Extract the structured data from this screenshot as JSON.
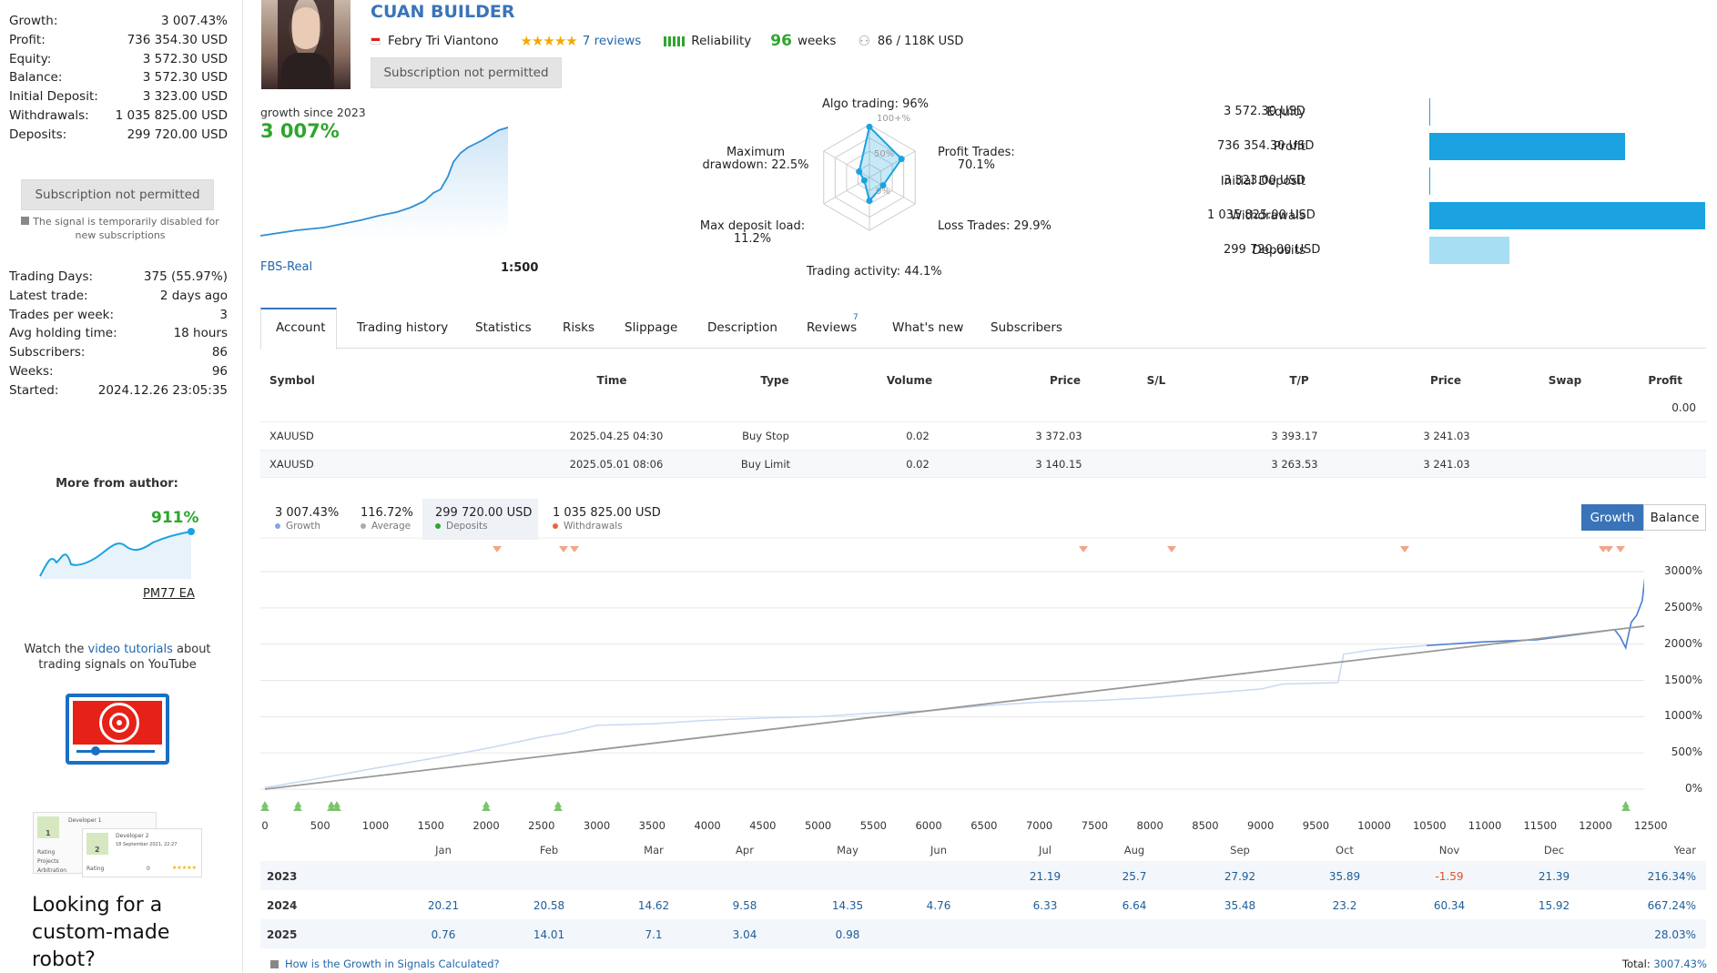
{
  "sidebar": {
    "stats": [
      {
        "label": "Growth:",
        "value": "3 007.43%"
      },
      {
        "label": "Profit:",
        "value": "736 354.30 USD"
      },
      {
        "label": "Equity:",
        "value": "3 572.30 USD"
      },
      {
        "label": "Balance:",
        "value": "3 572.30 USD"
      },
      {
        "label": "Initial Deposit:",
        "value": "3 323.00 USD"
      },
      {
        "label": "Withdrawals:",
        "value": "1 035 825.00 USD"
      },
      {
        "label": "Deposits:",
        "value": "299 720.00 USD"
      }
    ],
    "subscribe_label": "Subscription not permitted",
    "disabled_note": "The signal is temporarily disabled for new subscriptions",
    "stats2": [
      {
        "label": "Trading Days:",
        "value": "375 (55.97%)"
      },
      {
        "label": "Latest trade:",
        "value": "2 days ago"
      },
      {
        "label": "Trades per week:",
        "value": "3"
      },
      {
        "label": "Avg holding time:",
        "value": "18 hours"
      },
      {
        "label": "Subscribers:",
        "value": "86"
      },
      {
        "label": "Weeks:",
        "value": "96"
      },
      {
        "label": "Started:",
        "value": "2024.12.26 23:05:35"
      }
    ],
    "more_from_author": "More from author:",
    "author_growth": "911%",
    "author_ea": "PM77 EA",
    "watch_pre": "Watch the ",
    "watch_link": "video tutorials",
    "watch_post": " about",
    "watch_line2": "trading signals on YouTube",
    "dev1": "Developer 1",
    "dev2": "Developer 2",
    "dev2_date": "18 September 2021, 22:27",
    "dev_rating": "Rating",
    "dev_projects": "Projects",
    "dev_arbitration": "Arbitration",
    "dev_num1": "1",
    "dev_num2": "2",
    "dev_zero": "0",
    "custom_robot": "Looking for a custom-made robot?"
  },
  "header": {
    "title": "CUAN BUILDER",
    "author": "Febry Tri Viantono",
    "reviews": "7 reviews",
    "reliability": "Reliability",
    "weeks_num": "96",
    "weeks_label": "weeks",
    "subscribers": "86  /  118K USD",
    "subscribe_label": "Subscription not permitted"
  },
  "growth_mini": {
    "label": "growth since 2023",
    "value": "3 007%",
    "broker": "FBS-Real",
    "leverage": "1:500"
  },
  "radar": {
    "algo": "Algo trading: 96%",
    "profit_trades_1": "Profit Trades:",
    "profit_trades_2": "70.1%",
    "loss_trades": "Loss Trades: 29.9%",
    "activity": "Trading activity: 44.1%",
    "maxload_1": "Max deposit load:",
    "maxload_2": "11.2%",
    "dd_1": "Maximum",
    "dd_2": "drawdown: 22.5%",
    "ring100": "100+%",
    "ring50": "50%",
    "ring0": "0%",
    "values": [
      96,
      70.1,
      29.9,
      44.1,
      11.2,
      22.5
    ]
  },
  "bars": [
    {
      "label": "Equity",
      "value": "3 572.30 USD",
      "amount": 3572.3
    },
    {
      "label": "Profit",
      "value": "736 354.30 USD",
      "amount": 736354.3
    },
    {
      "label": "Initial Deposit",
      "value": "3 323.00 USD",
      "amount": 3323.0
    },
    {
      "label": "Withdrawals",
      "value": "1 035 825.00 USD",
      "amount": 1035825.0
    },
    {
      "label": "Deposits",
      "value": "299 720.00 USD",
      "amount": 299720.0
    }
  ],
  "tabs": [
    "Account",
    "Trading history",
    "Statistics",
    "Risks",
    "Slippage",
    "Description",
    "Reviews",
    "What's new",
    "Subscribers"
  ],
  "tabs_reviews_count": "7",
  "orders": {
    "headers": [
      "Symbol",
      "Time",
      "Type",
      "Volume",
      "Price",
      "S/L",
      "T/P",
      "Price",
      "Swap",
      "Profit"
    ],
    "total_profit": "0.00",
    "rows": [
      {
        "symbol": "XAUUSD",
        "time": "2025.04.25 04:30",
        "type": "Buy Stop",
        "volume": "0.02",
        "price": "3 372.03",
        "sl": "",
        "tp": "3 393.17",
        "price2": "3 241.03"
      },
      {
        "symbol": "XAUUSD",
        "time": "2025.05.01 08:06",
        "type": "Buy Limit",
        "volume": "0.02",
        "price": "3 140.15",
        "sl": "",
        "tp": "3 263.53",
        "price2": "3 241.03"
      }
    ]
  },
  "legend": [
    {
      "value": "3 007.43%",
      "label": "Growth",
      "color": "#7fa8e0"
    },
    {
      "value": "116.72%",
      "label": "Average",
      "color": "#aaaaaa"
    },
    {
      "value": "299 720.00 USD",
      "label": "Deposits",
      "color": "#2ea52e"
    },
    {
      "value": "1 035 825.00 USD",
      "label": "Withdrawals",
      "color": "#e8643c"
    }
  ],
  "chart_toggle": {
    "growth": "Growth",
    "balance": "Balance"
  },
  "chart_data": {
    "type": "line",
    "xlim": [
      0,
      12500
    ],
    "ylim": [
      0,
      3000
    ],
    "x_ticks": [
      0,
      500,
      1000,
      1500,
      2000,
      2500,
      3000,
      3500,
      4000,
      4500,
      5000,
      5500,
      6000,
      6500,
      7000,
      7500,
      8000,
      8500,
      9000,
      9500,
      10000,
      10500,
      11000,
      11500,
      12000,
      12500
    ],
    "y_ticks": [
      "3000%",
      "2500%",
      "2000%",
      "1500%",
      "1000%",
      "500%",
      "0%"
    ],
    "series": [
      {
        "name": "Growth",
        "x": [
          0,
          500,
          1000,
          1500,
          2000,
          2500,
          2700,
          3000,
          3500,
          4000,
          4500,
          5000,
          5500,
          6000,
          6500,
          7000,
          7500,
          8000,
          8500,
          9000,
          9200,
          9500,
          9700,
          9750,
          10000,
          10500,
          11000,
          11500,
          11800,
          12000,
          12200,
          12250,
          12300,
          12350,
          12400,
          12450,
          12480
        ],
        "values": [
          20,
          150,
          290,
          420,
          560,
          720,
          770,
          880,
          900,
          950,
          980,
          1000,
          1050,
          1080,
          1150,
          1200,
          1220,
          1260,
          1320,
          1380,
          1450,
          1460,
          1470,
          1860,
          1920,
          1980,
          2030,
          2060,
          2120,
          2160,
          2200,
          2100,
          1950,
          2300,
          2400,
          2600,
          3000
        ]
      },
      {
        "name": "Average",
        "x": [
          0,
          12480
        ],
        "values": [
          0,
          2250
        ]
      }
    ],
    "deposit_markers_x": [
      0,
      300,
      600,
      650,
      2000,
      2650,
      12300
    ],
    "withdrawal_markers_x": [
      2100,
      2700,
      2800,
      7400,
      8200,
      10300,
      12100,
      12150,
      12250
    ]
  },
  "monthly": {
    "months": [
      "Jan",
      "Feb",
      "Mar",
      "Apr",
      "May",
      "Jun",
      "Jul",
      "Aug",
      "Sep",
      "Oct",
      "Nov",
      "Dec",
      "Year"
    ],
    "rows": [
      {
        "year": "2023",
        "values": [
          "",
          "",
          "",
          "",
          "",
          "",
          "21.19",
          "25.7",
          "27.92",
          "35.89",
          "-1.59",
          "21.39",
          "216.34%"
        ]
      },
      {
        "year": "2024",
        "values": [
          "20.21",
          "20.58",
          "14.62",
          "9.58",
          "14.35",
          "4.76",
          "6.33",
          "6.64",
          "35.48",
          "23.2",
          "60.34",
          "15.92",
          "667.24%"
        ]
      },
      {
        "year": "2025",
        "values": [
          "0.76",
          "14.01",
          "7.1",
          "3.04",
          "0.98",
          "",
          "",
          "",
          "",
          "",
          "",
          "",
          "28.03%"
        ]
      }
    ],
    "how_calc": "How is the Growth in Signals Calculated?",
    "total_label": "Total:",
    "total_value": "3007.43%"
  }
}
